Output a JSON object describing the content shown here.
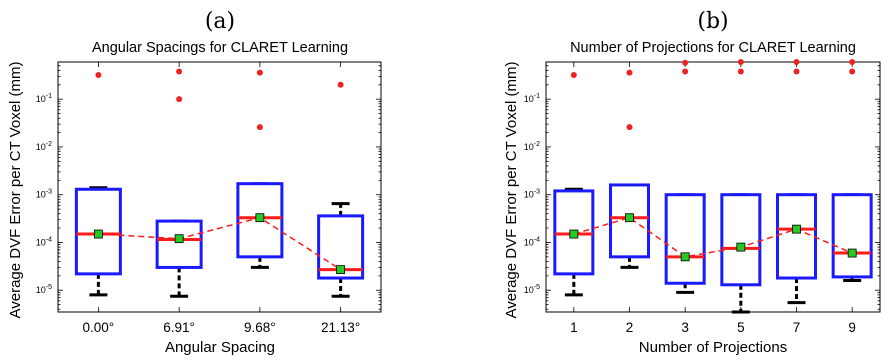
{
  "chart_data": [
    {
      "panel_label": "(a)",
      "type": "box",
      "title": "Angular Spacings for CLARET Learning",
      "xlabel": "Angular Spacing",
      "ylabel": "Average DVF Error per CT Voxel (mm)",
      "yscale": "log",
      "ylim": [
        3.5e-06,
        0.6
      ],
      "ytick_labels": [
        "10-5",
        "10-4",
        "10-3",
        "10-2",
        "10-1"
      ],
      "categories": [
        "0.00°",
        "6.91°",
        "9.68°",
        "21.13°"
      ],
      "boxes": [
        {
          "whisker_low": 8e-06,
          "q1": 2.2e-05,
          "median": 0.00015,
          "q3": 0.0013,
          "whisker_high": 0.0014,
          "mean": 0.00015,
          "outliers": [
            0.32
          ]
        },
        {
          "whisker_low": 7.5e-06,
          "q1": 3e-05,
          "median": 0.000115,
          "q3": 0.00028,
          "whisker_high": 0.00028,
          "mean": 0.00012,
          "outliers": [
            0.1,
            0.38
          ]
        },
        {
          "whisker_low": 3e-05,
          "q1": 5e-05,
          "median": 0.00033,
          "q3": 0.0017,
          "whisker_high": 0.0017,
          "mean": 0.00033,
          "outliers": [
            0.026,
            0.36
          ]
        },
        {
          "whisker_low": 7.5e-06,
          "q1": 1.8e-05,
          "median": 2.7e-05,
          "q3": 0.00036,
          "whisker_high": 0.00065,
          "mean": 2.7e-05,
          "outliers": [
            0.2
          ]
        }
      ],
      "colors": {
        "box": "#1a1aff",
        "median": "#ff1a1a",
        "whisker": "#000000",
        "mean_marker": "#22cc22",
        "outlier": "#ee2222"
      }
    },
    {
      "panel_label": "(b)",
      "type": "box",
      "title": "Number of Projections for CLARET Learning",
      "xlabel": "Number of Projections",
      "ylabel": "Average DVF Error per CT Voxel (mm)",
      "yscale": "log",
      "ylim": [
        3.5e-06,
        0.6
      ],
      "ytick_labels": [
        "10-5",
        "10-4",
        "10-3",
        "10-2",
        "10-1"
      ],
      "categories": [
        "1",
        "2",
        "3",
        "5",
        "7",
        "9"
      ],
      "boxes": [
        {
          "whisker_low": 8e-06,
          "q1": 2.2e-05,
          "median": 0.00015,
          "q3": 0.0012,
          "whisker_high": 0.0013,
          "mean": 0.00015,
          "outliers": [
            0.32
          ]
        },
        {
          "whisker_low": 3e-05,
          "q1": 5e-05,
          "median": 0.00033,
          "q3": 0.0016,
          "whisker_high": 0.0016,
          "mean": 0.00033,
          "outliers": [
            0.026,
            0.36
          ]
        },
        {
          "whisker_low": 9e-06,
          "q1": 1.4e-05,
          "median": 5e-05,
          "q3": 0.001,
          "whisker_high": 0.001,
          "mean": 5e-05,
          "outliers": [
            0.38,
            0.58
          ]
        },
        {
          "whisker_low": 3.5e-06,
          "q1": 1.3e-05,
          "median": 7.5e-05,
          "q3": 0.001,
          "whisker_high": 0.001,
          "mean": 8e-05,
          "outliers": [
            0.38,
            0.6
          ]
        },
        {
          "whisker_low": 5.5e-06,
          "q1": 1.8e-05,
          "median": 0.00019,
          "q3": 0.001,
          "whisker_high": 0.001,
          "mean": 0.00019,
          "outliers": [
            0.38,
            0.6
          ]
        },
        {
          "whisker_low": 1.6e-05,
          "q1": 1.9e-05,
          "median": 6e-05,
          "q3": 0.001,
          "whisker_high": 0.001,
          "mean": 6e-05,
          "outliers": [
            0.38,
            0.6
          ]
        }
      ],
      "colors": {
        "box": "#1a1aff",
        "median": "#ff1a1a",
        "whisker": "#000000",
        "mean_marker": "#22cc22",
        "outlier": "#ee2222"
      }
    }
  ]
}
